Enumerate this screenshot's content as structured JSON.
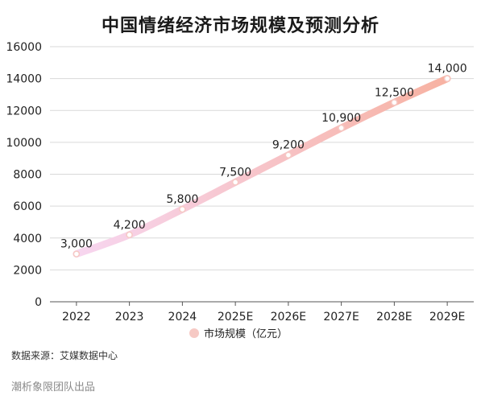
{
  "chart_data": {
    "type": "line",
    "title": "中国情绪经济市场规模及预测分析",
    "categories": [
      "2022",
      "2023",
      "2024",
      "2025E",
      "2026E",
      "2027E",
      "2028E",
      "2029E"
    ],
    "series": [
      {
        "name": "市场规模（亿元）",
        "values": [
          3000,
          4200,
          5800,
          7500,
          9200,
          10900,
          12500,
          14000
        ],
        "labels": [
          "3,000",
          "4,200",
          "5,800",
          "7,500",
          "9,200",
          "10,900",
          "12,500",
          "14,000"
        ]
      }
    ],
    "y_ticks": [
      "0",
      "2000",
      "4000",
      "6000",
      "8000",
      "10000",
      "12000",
      "14000",
      "16000"
    ],
    "ylim": [
      0,
      16000
    ],
    "grid": true,
    "legend_position": "bottom",
    "colors": {
      "line_start": "#f7d6f0",
      "line_end": "#f7b2a2",
      "point": "#f6c9c4"
    }
  },
  "footer": {
    "source": "数据来源：艾媒数据中心",
    "credit": "潮析象限团队出品"
  }
}
